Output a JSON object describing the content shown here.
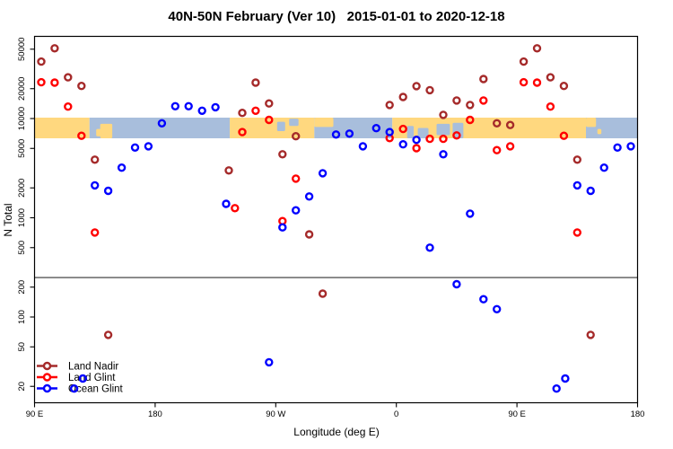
{
  "title": "40N-50N February (Ver 10)   2015-01-01 to 2020-12-18",
  "chart_data": {
    "type": "scatter",
    "title": "40N-50N February (Ver 10)   2015-01-01 to 2020-12-18",
    "xlabel": "Longitude (deg E)",
    "ylabel": "N Total",
    "x_axis": {
      "range_deg_continuing": [
        90,
        540
      ],
      "tick_positions_deg": [
        90,
        180,
        270,
        360,
        450,
        540
      ],
      "tick_labels": [
        "90 E",
        "180",
        "90 W",
        "0",
        "90 E",
        "180"
      ],
      "note": "longitude axis wraps: 90E to 180, 90W, 0, 90E, 180; bins of 10 deg, 90E-180 range plotted twice"
    },
    "y_axis": {
      "scale": "log",
      "tick_values": [
        20,
        50,
        100,
        200,
        500,
        1000,
        2000,
        5000,
        10000,
        20000,
        50000
      ],
      "range": [
        14,
        67000
      ],
      "labels_rotated": true
    },
    "grid": "off",
    "reference_line_y": 250,
    "legend": {
      "position": "bottom-left",
      "entries": [
        "Land Nadir",
        "Land Glint",
        "Ocean Glint"
      ]
    },
    "colors": {
      "land_nadir": "#A52A2A",
      "land_glint": "#FF0000",
      "ocean_glint": "#0000FF",
      "band_land": "#FFD87F",
      "band_ocean": "#A8BEDC",
      "reference_line": "#333333",
      "axis": "#000000"
    },
    "map_band": {
      "description": "land/ocean strip for 40N-50N along longitude",
      "value_range": [
        6300,
        10200
      ],
      "segments": [
        {
          "type": "land",
          "t": [
            90,
            131
          ]
        },
        {
          "type": "ocean",
          "t": [
            131,
            235.7
          ]
        },
        {
          "type": "land",
          "t": [
            235.7,
            298.8
          ]
        },
        {
          "type": "ocean",
          "t": [
            298.8,
            357
          ]
        },
        {
          "type": "land",
          "t": [
            357,
            501.5
          ]
        },
        {
          "type": "ocean",
          "t": [
            501.5,
            540
          ]
        }
      ],
      "patches": [
        {
          "type": "land",
          "t": [
            139,
            148
          ],
          "v": [
            0.3,
            1.0
          ]
        },
        {
          "type": "land",
          "t": [
            136,
            140
          ],
          "v": [
            0.55,
            0.9
          ]
        },
        {
          "type": "ocean",
          "t": [
            271,
            277
          ],
          "v": [
            0.2,
            0.65
          ]
        },
        {
          "type": "ocean",
          "t": [
            280,
            287
          ],
          "v": [
            0.05,
            0.4
          ]
        },
        {
          "type": "land",
          "t": [
            298.8,
            313
          ],
          "v": [
            0.0,
            0.45
          ]
        },
        {
          "type": "ocean",
          "t": [
            368,
            373
          ],
          "v": [
            0.4,
            1.0
          ]
        },
        {
          "type": "ocean",
          "t": [
            376,
            384
          ],
          "v": [
            0.5,
            1.0
          ]
        },
        {
          "type": "ocean",
          "t": [
            390,
            400
          ],
          "v": [
            0.3,
            0.85
          ]
        },
        {
          "type": "ocean",
          "t": [
            402,
            410
          ],
          "v": [
            0.25,
            1.0
          ]
        },
        {
          "type": "land",
          "t": [
            501.5,
            509
          ],
          "v": [
            0.0,
            0.45
          ]
        },
        {
          "type": "land",
          "t": [
            510,
            513
          ],
          "v": [
            0.55,
            0.8
          ]
        }
      ]
    },
    "series": [
      {
        "name": "Land Nadir",
        "color": "#A52A2A",
        "points": [
          [
            95,
            37500
          ],
          [
            105,
            51000
          ],
          [
            115,
            26000
          ],
          [
            125,
            21300
          ],
          [
            135,
            3850
          ],
          [
            145,
            66
          ],
          [
            235,
            3000
          ],
          [
            245,
            11400
          ],
          [
            255,
            23000
          ],
          [
            265,
            14200
          ],
          [
            275,
            4360
          ],
          [
            285,
            6640
          ],
          [
            295,
            680
          ],
          [
            305,
            172
          ],
          [
            355,
            13700
          ],
          [
            365,
            16500
          ],
          [
            375,
            21200
          ],
          [
            385,
            19300
          ],
          [
            395,
            10900
          ],
          [
            405,
            15200
          ],
          [
            415,
            13700
          ],
          [
            425,
            25000
          ],
          [
            435,
            8950
          ],
          [
            445,
            8600
          ],
          [
            455,
            37500
          ],
          [
            465,
            51000
          ],
          [
            475,
            26000
          ],
          [
            485,
            21300
          ],
          [
            495,
            3850
          ],
          [
            505,
            66
          ]
        ]
      },
      {
        "name": "Land Glint",
        "color": "#FF0000",
        "points": [
          [
            95,
            23200
          ],
          [
            105,
            23000
          ],
          [
            115,
            13200
          ],
          [
            125,
            6700
          ],
          [
            135,
            710
          ],
          [
            239.5,
            1250
          ],
          [
            245,
            7300
          ],
          [
            255,
            12000
          ],
          [
            265,
            9700
          ],
          [
            275,
            926
          ],
          [
            285,
            2480
          ],
          [
            355,
            6350
          ],
          [
            365,
            7850
          ],
          [
            375,
            5030
          ],
          [
            385,
            6250
          ],
          [
            395,
            6250
          ],
          [
            405,
            6760
          ],
          [
            415,
            9700
          ],
          [
            425,
            15200
          ],
          [
            435,
            4800
          ],
          [
            445,
            5250
          ],
          [
            455,
            23200
          ],
          [
            465,
            23000
          ],
          [
            475,
            13200
          ],
          [
            485,
            6700
          ],
          [
            495,
            710
          ]
        ]
      },
      {
        "name": "Ocean Glint",
        "color": "#0000FF",
        "points": [
          [
            119.5,
            19
          ],
          [
            126,
            24
          ],
          [
            135,
            2120
          ],
          [
            145,
            1870
          ],
          [
            155,
            3200
          ],
          [
            165,
            5100
          ],
          [
            175,
            5250
          ],
          [
            185,
            8950
          ],
          [
            195,
            13300
          ],
          [
            205,
            13300
          ],
          [
            215,
            12000
          ],
          [
            225,
            13000
          ],
          [
            233,
            1380
          ],
          [
            265,
            35
          ],
          [
            275,
            800
          ],
          [
            285,
            1190
          ],
          [
            295,
            1640
          ],
          [
            305,
            2810
          ],
          [
            315,
            6900
          ],
          [
            325,
            7050
          ],
          [
            335,
            5250
          ],
          [
            345,
            8000
          ],
          [
            355,
            7300
          ],
          [
            365,
            5500
          ],
          [
            375,
            6100
          ],
          [
            385,
            500
          ],
          [
            395,
            4360
          ],
          [
            405,
            214
          ],
          [
            415,
            1100
          ],
          [
            425,
            151
          ],
          [
            435,
            120
          ],
          [
            479.5,
            19
          ],
          [
            486,
            24
          ],
          [
            495,
            2120
          ],
          [
            505,
            1870
          ],
          [
            515,
            3200
          ],
          [
            525,
            5100
          ],
          [
            535,
            5250
          ]
        ]
      }
    ]
  }
}
